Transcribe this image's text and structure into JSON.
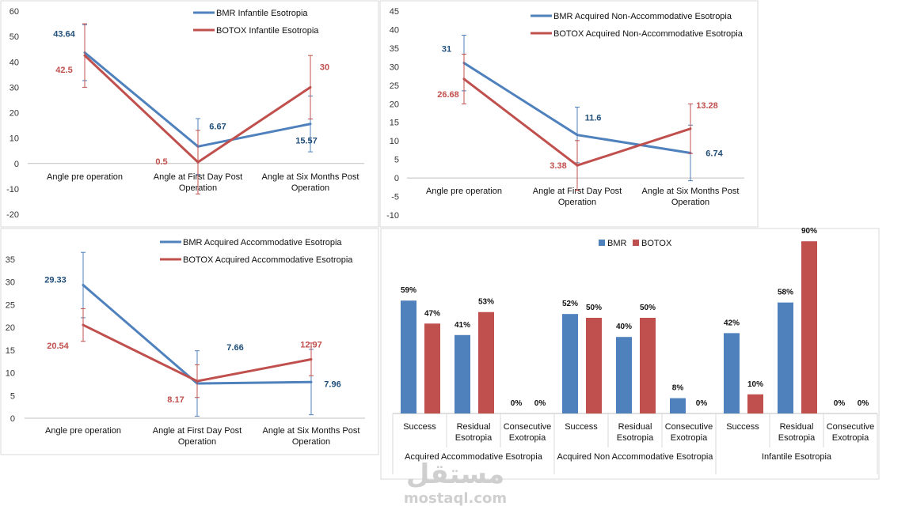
{
  "colors": {
    "bmr": "#4f81bd",
    "botox": "#c0504d",
    "panel_border": "#d9d9d9",
    "axis": "#bfbfbf"
  },
  "chart_data": [
    {
      "type": "line",
      "id": "infantile",
      "categories": [
        "Angle pre operation",
        "Angle at First Day Post Operation",
        "Angle at Six Months Post Operation"
      ],
      "series": [
        {
          "name": "BMR Infantile Esotropia",
          "values": [
            43.64,
            6.67,
            15.57
          ],
          "labels": [
            "43.64",
            "6.67",
            "15.57"
          ],
          "error": [
            11,
            11,
            11
          ]
        },
        {
          "name": "BOTOX Infantile Esotropia",
          "values": [
            42.5,
            0.5,
            30
          ],
          "labels": [
            "42.5",
            "0.5",
            "30"
          ],
          "error": [
            12.5,
            12.5,
            12.5
          ]
        }
      ],
      "ylim": [
        -20,
        60
      ],
      "yticks": [
        -20,
        -10,
        0,
        10,
        20,
        30,
        40,
        50,
        60
      ]
    },
    {
      "type": "line",
      "id": "acquired_non_accommodative",
      "categories": [
        "Angle pre operation",
        "Angle at First Day Post Operation",
        "Angle at Six Months Post Operation"
      ],
      "series": [
        {
          "name": "BMR Acquired Non-Accommodative Esotropia",
          "values": [
            31,
            11.6,
            6.74
          ],
          "labels": [
            "31",
            "11.6",
            "6.74"
          ],
          "error": [
            7.5,
            7.5,
            7.5
          ]
        },
        {
          "name": "BOTOX Acquired Non-Accommodative Esotropia",
          "values": [
            26.68,
            3.38,
            13.28
          ],
          "labels": [
            "26.68",
            "3.38",
            "13.28"
          ],
          "error": [
            6.7,
            6.7,
            6.7
          ]
        }
      ],
      "ylim": [
        -10,
        45
      ],
      "yticks": [
        -10,
        -5,
        0,
        5,
        10,
        15,
        20,
        25,
        30,
        35,
        40,
        45
      ]
    },
    {
      "type": "line",
      "id": "acquired_accommodative",
      "categories": [
        "Angle pre operation",
        "Angle at First Day Post Operation",
        "Angle at Six Months Post Operation"
      ],
      "series": [
        {
          "name": "BMR Acquired Accommodative Esotropia",
          "values": [
            29.33,
            7.66,
            7.96
          ],
          "labels": [
            "29.33",
            "7.66",
            "7.96"
          ],
          "error": [
            7.2,
            7.2,
            7.2
          ]
        },
        {
          "name": "BOTOX Acquired Accommodative Esotropia",
          "values": [
            20.54,
            8.17,
            12.97
          ],
          "labels": [
            "20.54",
            "8.17",
            "12.97"
          ],
          "error": [
            3.6,
            3.6,
            3.6
          ]
        }
      ],
      "ylim": [
        0,
        35
      ],
      "yticks": [
        0,
        5,
        10,
        15,
        20,
        25,
        30,
        35
      ]
    },
    {
      "type": "bar",
      "id": "outcomes",
      "legend": [
        "BMR",
        "BOTOX"
      ],
      "groups": [
        {
          "name": "Acquired Accommodative Esotropia",
          "categories": [
            "Success",
            "Residual Esotropia",
            "Consecutive Exotropia"
          ],
          "bmr": [
            59,
            41,
            0
          ],
          "botox": [
            47,
            53,
            0
          ]
        },
        {
          "name": "Acquired Non Accommodative Esotropia",
          "categories": [
            "Success",
            "Residual Esotropia",
            "Consecutive Exotropia"
          ],
          "bmr": [
            52,
            40,
            8
          ],
          "botox": [
            50,
            50,
            0
          ]
        },
        {
          "name": "Infantile Esotropia",
          "categories": [
            "Success",
            "Residual Esotropia",
            "Consecutive Exotropia"
          ],
          "bmr": [
            42,
            58,
            0
          ],
          "botox": [
            10,
            90,
            0
          ]
        }
      ],
      "unit": "%",
      "ylim": [
        0,
        100
      ]
    }
  ],
  "watermark": {
    "arabic": "مستقل",
    "latin": "mostaql.com"
  }
}
